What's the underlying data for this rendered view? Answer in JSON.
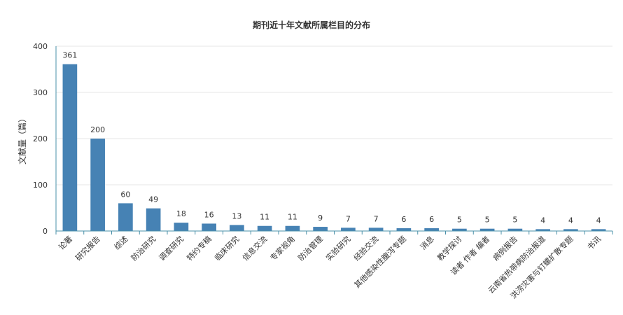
{
  "chart_data": {
    "type": "bar",
    "title": "期刊近十年文献所属栏目的分布",
    "xlabel": "",
    "ylabel": "文献量（篇）",
    "ylim": [
      0,
      400
    ],
    "yticks": [
      0,
      100,
      200,
      300,
      400
    ],
    "grid": true,
    "legend": "none",
    "colors": {
      "bar": "#4682b4",
      "axis": "#4a90a8",
      "grid": "#e6e6e6"
    },
    "categories": [
      "论著",
      "研究报告",
      "综述",
      "防治研究",
      "调查研究",
      "特约专稿",
      "临床研究",
      "信息交流",
      "专家视角",
      "防治管理",
      "实验研究",
      "经验交流",
      "其他感染性腹泻专题",
      "消息",
      "教学探讨",
      "读者 作者 编者",
      "病例报告",
      "云南省热带病防治报道",
      "洪涝灾害与钉螺扩散专题",
      "书讯"
    ],
    "values": [
      361,
      200,
      60,
      49,
      18,
      16,
      13,
      11,
      11,
      9,
      7,
      7,
      6,
      6,
      5,
      5,
      5,
      4,
      4,
      4
    ]
  }
}
